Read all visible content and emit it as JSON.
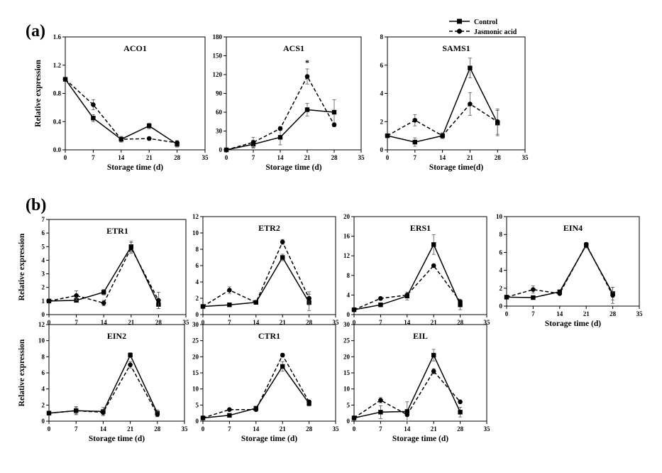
{
  "figure": {
    "panel_a": "(a)",
    "panel_b": "(b)"
  },
  "legend": {
    "items": [
      {
        "label": "Control",
        "dash": false,
        "marker": "square"
      },
      {
        "label": "Jasmonic acid",
        "dash": true,
        "marker": "circle"
      }
    ]
  },
  "colors": {
    "line": "#000000",
    "frame": "#000000",
    "background": "#ffffff"
  },
  "chart_data": [
    {
      "type": "line",
      "title": "ACO1",
      "xlabel": "Storage time (d)",
      "ylabel": "Relative expression",
      "xlim": [
        0,
        35
      ],
      "xticks": [
        0,
        7,
        14,
        21,
        28,
        35
      ],
      "ylim": [
        0,
        1.6
      ],
      "yticks": [
        0.0,
        0.4,
        0.8,
        1.2,
        1.6
      ],
      "ytick_labels": [
        "0.0",
        "0.4",
        "0.8",
        "1.2",
        "1.6"
      ],
      "grid": false,
      "x": [
        0,
        7,
        14,
        21,
        28
      ],
      "series": [
        {
          "name": "Control",
          "values": [
            1.0,
            0.45,
            0.15,
            0.34,
            0.08
          ],
          "errors": [
            0.02,
            0.05,
            0.04,
            0.04,
            0.04
          ]
        },
        {
          "name": "Jasmonic acid",
          "values": [
            1.0,
            0.64,
            0.15,
            0.16,
            0.1
          ],
          "errors": [
            0.02,
            0.07,
            0.03,
            0.02,
            0.03
          ]
        }
      ],
      "annotations": []
    },
    {
      "type": "line",
      "title": "ACS1",
      "xlabel": "Storage time (d)",
      "ylabel": "",
      "xlim": [
        0,
        35
      ],
      "xticks": [
        0,
        7,
        14,
        21,
        28,
        35
      ],
      "ylim": [
        0,
        180
      ],
      "yticks": [
        0,
        30,
        60,
        90,
        120,
        150,
        180
      ],
      "ytick_labels": [
        "0",
        "30",
        "60",
        "90",
        "120",
        "150",
        "180"
      ],
      "grid": false,
      "x": [
        0,
        7,
        14,
        21,
        28
      ],
      "series": [
        {
          "name": "Control",
          "values": [
            0,
            9,
            20,
            64,
            60
          ],
          "errors": [
            1,
            6,
            12,
            10,
            20
          ]
        },
        {
          "name": "Jasmonic acid",
          "values": [
            0,
            12,
            34,
            117,
            40
          ],
          "errors": [
            1,
            8,
            3,
            12,
            3
          ]
        }
      ],
      "annotations": [
        {
          "text": "*",
          "x": 21,
          "y": 135
        }
      ]
    },
    {
      "type": "line",
      "title": "SAMS1",
      "xlabel": "Storage time(d)",
      "ylabel": "",
      "xlim": [
        0,
        35
      ],
      "xticks": [
        0,
        7,
        14,
        21,
        28,
        35
      ],
      "ylim": [
        0,
        8
      ],
      "yticks": [
        0,
        2,
        4,
        6,
        8
      ],
      "ytick_labels": [
        "0",
        "2",
        "4",
        "6",
        "8"
      ],
      "grid": false,
      "x": [
        0,
        7,
        14,
        21,
        28
      ],
      "series": [
        {
          "name": "Control",
          "values": [
            1.0,
            0.55,
            1.0,
            5.8,
            1.9
          ],
          "errors": [
            0.1,
            0.3,
            0.2,
            0.7,
            0.9
          ]
        },
        {
          "name": "Jasmonic acid",
          "values": [
            1.0,
            2.1,
            1.0,
            3.25,
            2.0
          ],
          "errors": [
            0.1,
            0.4,
            0.2,
            0.8,
            0.9
          ]
        }
      ],
      "annotations": []
    },
    {
      "type": "line",
      "title": "ETR1",
      "xlabel": "",
      "ylabel": "Relative expression",
      "xlim": [
        0,
        35
      ],
      "xticks": [
        0,
        7,
        14,
        21,
        28,
        35
      ],
      "ylim": [
        0,
        7
      ],
      "yticks": [
        0,
        1,
        2,
        3,
        4,
        5,
        6,
        7
      ],
      "ytick_labels": [
        "0",
        "1",
        "2",
        "3",
        "4",
        "5",
        "6",
        "7"
      ],
      "grid": false,
      "x": [
        0,
        7,
        14,
        21,
        28
      ],
      "series": [
        {
          "name": "Control",
          "values": [
            1.0,
            1.05,
            1.65,
            5.0,
            0.75
          ],
          "errors": [
            0.05,
            0.1,
            0.2,
            0.4,
            0.3
          ]
        },
        {
          "name": "Jasmonic acid",
          "values": [
            1.0,
            1.4,
            0.85,
            4.9,
            1.05
          ],
          "errors": [
            0.05,
            0.35,
            0.2,
            0.4,
            0.6
          ]
        }
      ],
      "annotations": []
    },
    {
      "type": "line",
      "title": "ETR2",
      "xlabel": "",
      "ylabel": "",
      "xlim": [
        0,
        35
      ],
      "xticks": [
        0,
        7,
        14,
        21,
        28,
        35
      ],
      "ylim": [
        0,
        12
      ],
      "yticks": [
        0,
        2,
        4,
        6,
        8,
        10,
        12
      ],
      "ytick_labels": [
        "0",
        "2",
        "4",
        "6",
        "8",
        "10",
        "12"
      ],
      "grid": false,
      "x": [
        0,
        7,
        14,
        21,
        28
      ],
      "series": [
        {
          "name": "Control",
          "values": [
            1.0,
            1.2,
            1.5,
            7.0,
            1.5
          ],
          "errors": [
            0.05,
            0.1,
            0.1,
            0.4,
            1.0
          ]
        },
        {
          "name": "Jasmonic acid",
          "values": [
            1.0,
            3.0,
            1.5,
            8.9,
            2.0
          ],
          "errors": [
            0.05,
            0.4,
            0.1,
            0.3,
            0.8
          ]
        }
      ],
      "annotations": []
    },
    {
      "type": "line",
      "title": "ERS1",
      "xlabel": "",
      "ylabel": "",
      "xlim": [
        0,
        35
      ],
      "xticks": [
        0,
        7,
        14,
        21,
        28,
        35
      ],
      "ylim": [
        0,
        20
      ],
      "yticks": [
        0,
        4,
        8,
        12,
        16,
        20
      ],
      "ytick_labels": [
        "0",
        "4",
        "8",
        "12",
        "16",
        "20"
      ],
      "grid": false,
      "x": [
        0,
        7,
        14,
        21,
        28
      ],
      "series": [
        {
          "name": "Control",
          "values": [
            1.0,
            2.0,
            3.8,
            14.3,
            2.0
          ],
          "errors": [
            0.1,
            0.3,
            0.8,
            2.0,
            1.0
          ]
        },
        {
          "name": "Jasmonic acid",
          "values": [
            1.0,
            3.3,
            4.0,
            10.0,
            2.7
          ],
          "errors": [
            0.1,
            0.2,
            0.3,
            0.3,
            0.2
          ]
        }
      ],
      "annotations": []
    },
    {
      "type": "line",
      "title": "EIN4",
      "xlabel": "Storage time (d)",
      "ylabel": "",
      "xlim": [
        0,
        35
      ],
      "xticks": [
        0,
        7,
        14,
        21,
        28,
        35
      ],
      "ylim": [
        0,
        10
      ],
      "yticks": [
        0,
        2,
        4,
        6,
        8,
        10
      ],
      "ytick_labels": [
        "0",
        "2",
        "4",
        "6",
        "8",
        "10"
      ],
      "grid": false,
      "x": [
        0,
        7,
        14,
        21,
        28
      ],
      "series": [
        {
          "name": "Control",
          "values": [
            1.0,
            0.95,
            1.6,
            6.8,
            1.4
          ],
          "errors": [
            0.05,
            0.1,
            0.1,
            0.3,
            0.7
          ]
        },
        {
          "name": "Jasmonic acid",
          "values": [
            1.0,
            1.85,
            1.4,
            6.9,
            1.2
          ],
          "errors": [
            0.05,
            0.4,
            0.1,
            0.2,
            0.9
          ]
        }
      ],
      "annotations": []
    },
    {
      "type": "line",
      "title": "EIN2",
      "xlabel": "Storage time (d)",
      "ylabel": "Relative expression",
      "xlim": [
        0,
        35
      ],
      "xticks": [
        0,
        7,
        14,
        21,
        28,
        35
      ],
      "ylim": [
        0,
        12
      ],
      "yticks": [
        0,
        2,
        4,
        6,
        8,
        10,
        12
      ],
      "ytick_labels": [
        "0",
        "2",
        "4",
        "6",
        "8",
        "10",
        "12"
      ],
      "grid": false,
      "x": [
        0,
        7,
        14,
        21,
        28
      ],
      "series": [
        {
          "name": "Control",
          "values": [
            1.0,
            1.3,
            1.2,
            8.2,
            1.0
          ],
          "errors": [
            0.05,
            0.4,
            0.5,
            0.3,
            0.4
          ]
        },
        {
          "name": "Jasmonic acid",
          "values": [
            1.0,
            1.3,
            1.1,
            7.0,
            0.85
          ],
          "errors": [
            0.05,
            0.5,
            0.3,
            0.4,
            0.3
          ]
        }
      ],
      "annotations": []
    },
    {
      "type": "line",
      "title": "CTR1",
      "xlabel": "Storage time (d)",
      "ylabel": "",
      "xlim": [
        0,
        35
      ],
      "xticks": [
        0,
        7,
        14,
        21,
        28,
        35
      ],
      "ylim": [
        0,
        30
      ],
      "yticks": [
        0,
        5,
        10,
        15,
        20,
        25,
        30
      ],
      "ytick_labels": [
        "0",
        "5",
        "10",
        "15",
        "20",
        "25",
        "30"
      ],
      "grid": false,
      "x": [
        0,
        7,
        14,
        21,
        28
      ],
      "series": [
        {
          "name": "Control",
          "values": [
            1.0,
            1.8,
            4.0,
            17.0,
            5.5
          ],
          "errors": [
            0.1,
            0.2,
            0.3,
            1.5,
            0.8
          ]
        },
        {
          "name": "Jasmonic acid",
          "values": [
            1.0,
            3.6,
            3.6,
            20.5,
            6.0
          ],
          "errors": [
            0.1,
            0.2,
            0.5,
            0.6,
            0.5
          ]
        }
      ],
      "annotations": []
    },
    {
      "type": "line",
      "title": "EIL",
      "xlabel": "Storage time (d)",
      "ylabel": "",
      "xlim": [
        0,
        35
      ],
      "xticks": [
        0,
        7,
        14,
        21,
        28,
        35
      ],
      "ylim": [
        0,
        30
      ],
      "yticks": [
        0,
        5,
        10,
        15,
        20,
        25,
        30
      ],
      "ytick_labels": [
        "0",
        "5",
        "10",
        "15",
        "20",
        "25",
        "30"
      ],
      "grid": false,
      "x": [
        0,
        7,
        14,
        21,
        28
      ],
      "series": [
        {
          "name": "Control",
          "values": [
            1.0,
            2.8,
            3.0,
            20.5,
            2.8
          ],
          "errors": [
            0.1,
            2.0,
            3.0,
            1.8,
            1.5
          ]
        },
        {
          "name": "Jasmonic acid",
          "values": [
            1.0,
            6.5,
            2.0,
            15.5,
            6.0
          ],
          "errors": [
            0.1,
            0.8,
            0.3,
            0.8,
            0.4
          ]
        }
      ],
      "annotations": []
    }
  ]
}
